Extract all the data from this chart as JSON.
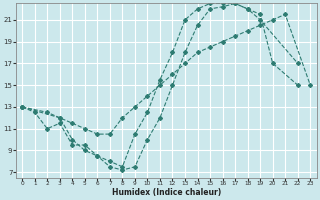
{
  "xlabel": "Humidex (Indice chaleur)",
  "xlim": [
    -0.5,
    23.5
  ],
  "ylim": [
    6.5,
    22.5
  ],
  "xticks": [
    0,
    1,
    2,
    3,
    4,
    5,
    6,
    7,
    8,
    9,
    10,
    11,
    12,
    13,
    14,
    15,
    16,
    17,
    18,
    19,
    20,
    21,
    22,
    23
  ],
  "yticks": [
    7,
    9,
    11,
    13,
    15,
    17,
    19,
    21
  ],
  "bg_color": "#cce8ec",
  "grid_color": "#ffffff",
  "line_color": "#2e7c72",
  "line1_x": [
    0,
    1,
    2,
    3,
    4,
    5,
    6,
    7,
    8,
    9,
    10,
    11,
    12,
    13,
    14,
    15,
    16,
    17,
    18,
    19,
    20,
    22
  ],
  "line1_y": [
    13,
    12.5,
    11.0,
    11.5,
    9.5,
    9.5,
    8.5,
    7.5,
    7.2,
    7.5,
    10.0,
    12.0,
    15.0,
    18.0,
    20.5,
    22.0,
    22.2,
    22.5,
    22.0,
    21.5,
    17.0,
    15.0
  ],
  "line2_x": [
    0,
    2,
    3,
    4,
    5,
    6,
    7,
    8,
    9,
    10,
    11,
    12,
    13,
    14,
    15,
    16,
    17,
    18,
    19,
    20,
    21,
    23
  ],
  "line2_y": [
    13,
    12.5,
    12.0,
    11.5,
    11.0,
    10.5,
    10.5,
    12.0,
    13.0,
    14.0,
    15.0,
    16.0,
    17.0,
    18.0,
    18.5,
    19.0,
    19.5,
    20.0,
    20.5,
    21.0,
    21.5,
    15.0
  ],
  "line3_x": [
    0,
    3,
    4,
    5,
    6,
    7,
    8,
    9,
    10,
    11,
    12,
    13,
    14,
    15,
    16,
    17,
    18,
    19,
    22
  ],
  "line3_y": [
    13,
    12.0,
    10.0,
    9.0,
    8.5,
    8.0,
    7.5,
    10.5,
    12.5,
    15.5,
    18.0,
    21.0,
    22.0,
    22.5,
    22.5,
    22.5,
    22.0,
    21.0,
    17.0
  ]
}
